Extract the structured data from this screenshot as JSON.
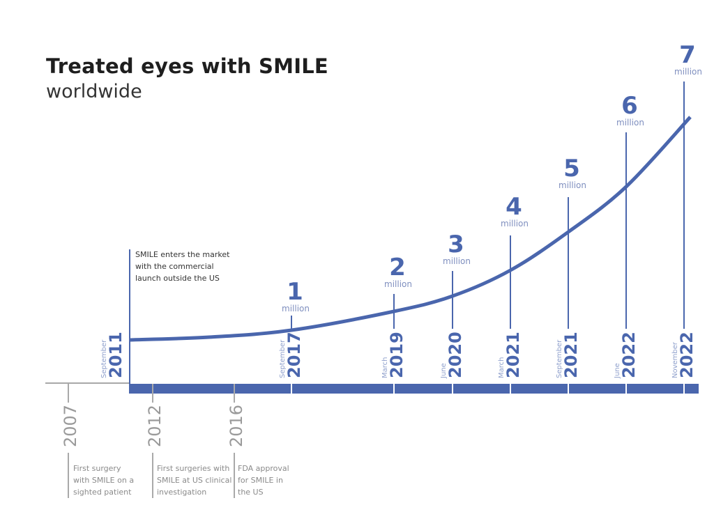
{
  "colors": {
    "accent": "#4a66ad",
    "muted_text": "#8a8a8a",
    "pre_text": "#9a9a9a",
    "title": "#1e1e1e"
  },
  "chart_data": {
    "type": "line",
    "title": "Treated eyes with SMILE",
    "subtitle": "worldwide",
    "unit": "million",
    "start": {
      "month": "September",
      "year": "2011",
      "value": 0,
      "note": [
        "SMILE enters the market",
        "with the commercial",
        "launch outside the US"
      ]
    },
    "milestones": [
      {
        "value": "1",
        "unit": "million",
        "month": "September",
        "year": "2017"
      },
      {
        "value": "2",
        "unit": "million",
        "month": "March",
        "year": "2019"
      },
      {
        "value": "3",
        "unit": "million",
        "month": "June",
        "year": "2020"
      },
      {
        "value": "4",
        "unit": "million",
        "month": "March",
        "year": "2021"
      },
      {
        "value": "5",
        "unit": "million",
        "month": "September",
        "year": "2021"
      },
      {
        "value": "6",
        "unit": "million",
        "month": "June",
        "year": "2022"
      },
      {
        "value": "7",
        "unit": "million",
        "month": "November",
        "year": "2022"
      }
    ],
    "early_events": [
      {
        "year": "2007",
        "note": [
          "First surgery",
          "with SMILE on a",
          "sighted patient"
        ]
      },
      {
        "year": "2012",
        "note": [
          "First surgeries with",
          "SMILE at US clinical",
          "investigation"
        ]
      },
      {
        "year": "2016",
        "note": [
          "FDA approval",
          "for SMILE in",
          "the US"
        ]
      }
    ]
  }
}
